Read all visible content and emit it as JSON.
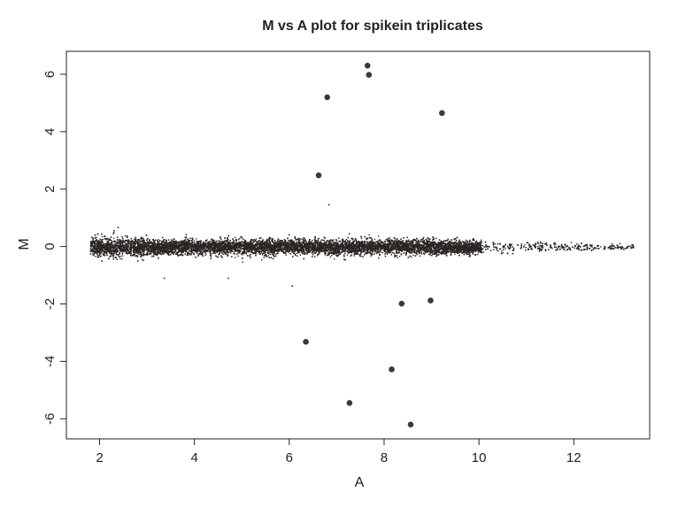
{
  "chart_data": {
    "type": "scatter",
    "title": "M vs A plot for spikein triplicates",
    "xlabel": "A",
    "ylabel": "M",
    "xlim": [
      1.3,
      13.6
    ],
    "ylim": [
      -6.7,
      6.8
    ],
    "xticks": [
      2,
      4,
      6,
      8,
      10,
      12
    ],
    "xtick_labels": [
      "2",
      "4",
      "6",
      "8",
      "10",
      "12"
    ],
    "yticks": [
      -6,
      -4,
      -2,
      0,
      2,
      4,
      6
    ],
    "ytick_labels": [
      "-6",
      "-4",
      "-2",
      "0",
      "2",
      "4",
      "6"
    ],
    "grid": false,
    "legend": null,
    "point_color": "#2b2523",
    "spikein_points": [
      {
        "x": 7.65,
        "y": 6.3
      },
      {
        "x": 7.68,
        "y": 5.98
      },
      {
        "x": 6.8,
        "y": 5.2
      },
      {
        "x": 9.22,
        "y": 4.65
      },
      {
        "x": 6.62,
        "y": 2.48
      },
      {
        "x": 8.37,
        "y": -1.99
      },
      {
        "x": 8.98,
        "y": -1.88
      },
      {
        "x": 6.35,
        "y": -3.32
      },
      {
        "x": 8.16,
        "y": -4.28
      },
      {
        "x": 7.27,
        "y": -5.45
      },
      {
        "x": 8.56,
        "y": -6.2
      }
    ],
    "background_cloud": {
      "description_of_data": "dense cloud of many thousands of genes centered at M=0",
      "x_range": [
        1.8,
        13.25
      ],
      "center_y": 0,
      "approx_count": 16000
    },
    "outlier_small_points": [
      {
        "x": 6.82,
        "y": 1.48
      },
      {
        "x": 6.05,
        "y": -1.35
      },
      {
        "x": 3.35,
        "y": -1.08
      },
      {
        "x": 4.7,
        "y": -1.08
      }
    ]
  }
}
